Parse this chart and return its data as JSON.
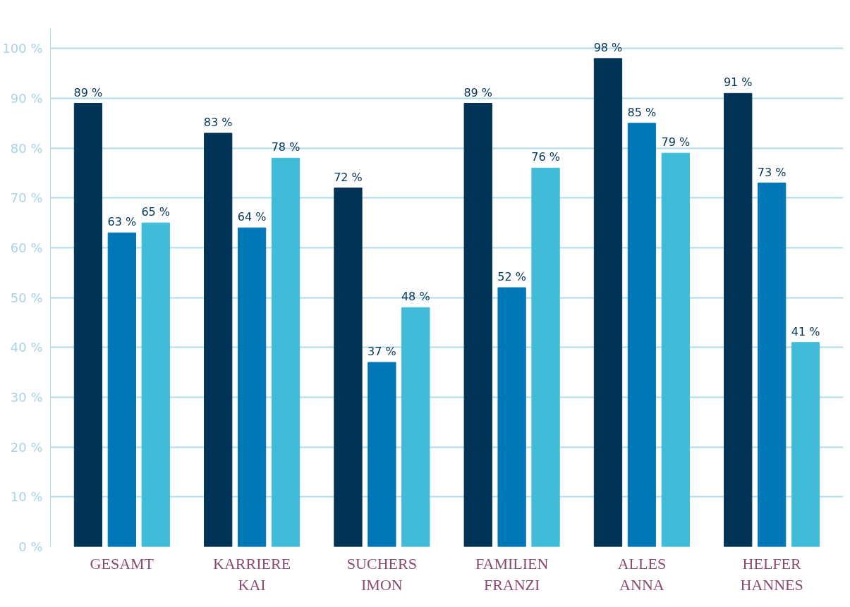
{
  "chart_data": {
    "type": "bar",
    "categories": [
      "GESAMT",
      "KARRIERE\nKAI",
      "SUCHERS\nIMON",
      "FAMILIEN\nFRANZI",
      "ALLES\nANNA",
      "HELFER\nHANNES"
    ],
    "series": [
      {
        "color": "#003355",
        "values": [
          89,
          83,
          72,
          89,
          98,
          91
        ],
        "value_labels": [
          "89 %",
          "83 %",
          "72 %",
          "89 %",
          "98 %",
          "91 %"
        ]
      },
      {
        "color": "#0077b6",
        "values": [
          63,
          64,
          37,
          52,
          85,
          73
        ],
        "value_labels": [
          "63 %",
          "64 %",
          "37 %",
          "52 %",
          "85 %",
          "73 %"
        ]
      },
      {
        "color": "#40bcd8",
        "values": [
          65,
          78,
          48,
          76,
          79,
          41
        ],
        "value_labels": [
          "65 %",
          "78 %",
          "48 %",
          "76 %",
          "79 %",
          "41 %"
        ]
      }
    ],
    "ylim": [
      0,
      104
    ],
    "yticks": [
      {
        "value": 0,
        "label": "0 %"
      },
      {
        "value": 10,
        "label": "10 %"
      },
      {
        "value": 20,
        "label": "20 %"
      },
      {
        "value": 30,
        "label": "30 %"
      },
      {
        "value": 40,
        "label": "40 %"
      },
      {
        "value": 50,
        "label": "50 %"
      },
      {
        "value": 60,
        "label": "60 %"
      },
      {
        "value": 70,
        "label": "70 %"
      },
      {
        "value": 80,
        "label": "80 %"
      },
      {
        "value": 90,
        "label": "90 %"
      },
      {
        "value": 100,
        "label": "100 %"
      }
    ],
    "grid": "y"
  }
}
